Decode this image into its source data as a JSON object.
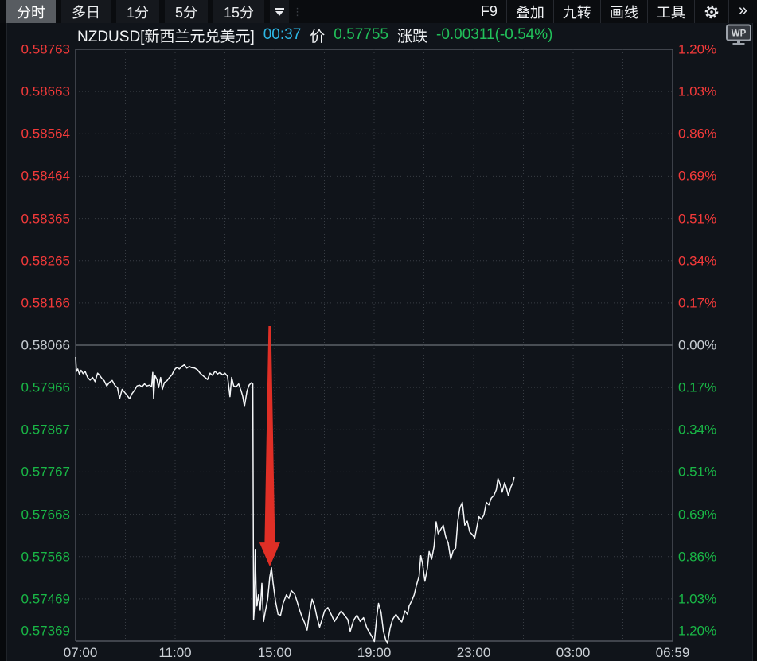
{
  "toolbar": {
    "tabs": [
      {
        "label": "分时",
        "active": true
      },
      {
        "label": "多日",
        "active": false
      },
      {
        "label": "1分",
        "active": false
      },
      {
        "label": "5分",
        "active": false
      },
      {
        "label": "15分",
        "active": false
      }
    ],
    "right_buttons": [
      {
        "label": "F9"
      },
      {
        "label": "叠加"
      },
      {
        "label": "九转"
      },
      {
        "label": "画线"
      },
      {
        "label": "工具"
      }
    ],
    "gear_icon": "gear-icon",
    "more_label": "»"
  },
  "header": {
    "symbol": "NZDUSD[新西兰元兑美元]",
    "time": "00:37",
    "price_label": "价",
    "price": "0.57755",
    "change_label": "涨跌",
    "change": "-0.00311(-0.54%)"
  },
  "watermark": {
    "label": "WP"
  },
  "axes": {
    "left_labels": [
      "0.58763",
      "0.58663",
      "0.58564",
      "0.58464",
      "0.58365",
      "0.58265",
      "0.58166",
      "0.58066",
      "0.57966",
      "0.57867",
      "0.57767",
      "0.57668",
      "0.57568",
      "0.57469",
      "0.57369"
    ],
    "right_labels": [
      "1.20%",
      "1.03%",
      "0.86%",
      "0.69%",
      "0.51%",
      "0.34%",
      "0.17%",
      "0.00%",
      "0.17%",
      "0.34%",
      "0.51%",
      "0.69%",
      "0.86%",
      "1.03%",
      "1.20%"
    ],
    "x_labels": [
      "07:00",
      "11:00",
      "15:00",
      "19:00",
      "23:00",
      "03:00",
      "06:59"
    ]
  },
  "colors": {
    "up_red": "#f43a3a",
    "down_green": "#19b746",
    "neutral": "#c7cdd3",
    "cyan": "#2eb8e6",
    "price_line": "#f4f6f8",
    "arrow_red": "#e93126",
    "grid_dotted": "#383d44",
    "grid_solid": "#50545c",
    "zero_line": "#5c6168"
  },
  "chart_data": {
    "type": "line",
    "title": "NZDUSD 分时 (intraday)",
    "xlabel": "time",
    "ylabel": "price",
    "x_unit": "minutes since 07:00",
    "x_range": [
      0,
      1439
    ],
    "y_range": [
      0.57369,
      0.58763
    ],
    "baseline_price": 0.58066,
    "grid": "dotted",
    "last_time": "00:37",
    "last_price": 0.57755,
    "change": -0.00311,
    "change_pct": -0.54,
    "annotation_arrow": {
      "time_min": 468,
      "from_price": 0.58111,
      "to_price": 0.57545
    },
    "points": [
      [
        0,
        0.58038
      ],
      [
        2,
        0.58004
      ],
      [
        5,
        0.5801
      ],
      [
        9,
        0.57998
      ],
      [
        13,
        0.58007
      ],
      [
        18,
        0.57999
      ],
      [
        23,
        0.58004
      ],
      [
        29,
        0.5799
      ],
      [
        35,
        0.57984
      ],
      [
        41,
        0.5799
      ],
      [
        47,
        0.5798
      ],
      [
        53,
        0.58
      ],
      [
        58,
        0.57995
      ],
      [
        63,
        0.57988
      ],
      [
        69,
        0.57982
      ],
      [
        75,
        0.5797
      ],
      [
        81,
        0.57978
      ],
      [
        88,
        0.57983
      ],
      [
        95,
        0.57971
      ],
      [
        101,
        0.57966
      ],
      [
        106,
        0.5794
      ],
      [
        112,
        0.57962
      ],
      [
        118,
        0.57955
      ],
      [
        124,
        0.57948
      ],
      [
        130,
        0.5794
      ],
      [
        136,
        0.57952
      ],
      [
        142,
        0.5796
      ],
      [
        148,
        0.5797
      ],
      [
        154,
        0.57972
      ],
      [
        160,
        0.57968
      ],
      [
        166,
        0.57975
      ],
      [
        172,
        0.5797
      ],
      [
        178,
        0.57972
      ],
      [
        183,
        0.57968
      ],
      [
        186,
        0.58002
      ],
      [
        188,
        0.5794
      ],
      [
        191,
        0.57995
      ],
      [
        196,
        0.57985
      ],
      [
        200,
        0.57966
      ],
      [
        205,
        0.5799
      ],
      [
        209,
        0.57962
      ],
      [
        214,
        0.57978
      ],
      [
        220,
        0.57982
      ],
      [
        226,
        0.5799
      ],
      [
        232,
        0.57996
      ],
      [
        238,
        0.58008
      ],
      [
        244,
        0.58014
      ],
      [
        250,
        0.5801
      ],
      [
        256,
        0.58016
      ],
      [
        262,
        0.5802
      ],
      [
        268,
        0.58012
      ],
      [
        274,
        0.58016
      ],
      [
        280,
        0.58013
      ],
      [
        287,
        0.58012
      ],
      [
        294,
        0.58008
      ],
      [
        300,
        0.58
      ],
      [
        306,
        0.57995
      ],
      [
        312,
        0.5799
      ],
      [
        318,
        0.57985
      ],
      [
        324,
        0.58
      ],
      [
        330,
        0.57995
      ],
      [
        336,
        0.58005
      ],
      [
        342,
        0.57998
      ],
      [
        348,
        0.58002
      ],
      [
        354,
        0.57996
      ],
      [
        360,
        0.58
      ],
      [
        366,
        0.57993
      ],
      [
        372,
        0.57945
      ],
      [
        376,
        0.5799
      ],
      [
        381,
        0.5797
      ],
      [
        387,
        0.57968
      ],
      [
        393,
        0.57975
      ],
      [
        399,
        0.57958
      ],
      [
        403,
        0.57945
      ],
      [
        407,
        0.57922
      ],
      [
        413,
        0.57958
      ],
      [
        418,
        0.57972
      ],
      [
        424,
        0.57978
      ],
      [
        427,
        0.57975
      ],
      [
        429,
        0.5742
      ],
      [
        431,
        0.57448
      ],
      [
        433,
        0.57585
      ],
      [
        435,
        0.57495
      ],
      [
        437,
        0.57452
      ],
      [
        441,
        0.57478
      ],
      [
        445,
        0.57442
      ],
      [
        449,
        0.57505
      ],
      [
        453,
        0.57415
      ],
      [
        457,
        0.57438
      ],
      [
        463,
        0.57468
      ],
      [
        468,
        0.5752
      ],
      [
        472,
        0.57542
      ],
      [
        476,
        0.57505
      ],
      [
        482,
        0.57462
      ],
      [
        488,
        0.57432
      ],
      [
        494,
        0.5743
      ],
      [
        500,
        0.57458
      ],
      [
        508,
        0.57478
      ],
      [
        514,
        0.5747
      ],
      [
        520,
        0.57488
      ],
      [
        528,
        0.5748
      ],
      [
        534,
        0.57462
      ],
      [
        540,
        0.57442
      ],
      [
        546,
        0.57425
      ],
      [
        552,
        0.57412
      ],
      [
        558,
        0.57395
      ],
      [
        564,
        0.57438
      ],
      [
        570,
        0.57468
      ],
      [
        576,
        0.57452
      ],
      [
        582,
        0.57424
      ],
      [
        588,
        0.57402
      ],
      [
        594,
        0.5742
      ],
      [
        600,
        0.5744
      ],
      [
        608,
        0.57448
      ],
      [
        616,
        0.57432
      ],
      [
        624,
        0.57415
      ],
      [
        632,
        0.57428
      ],
      [
        640,
        0.5744
      ],
      [
        648,
        0.5743
      ],
      [
        656,
        0.5742
      ],
      [
        662,
        0.57392
      ],
      [
        670,
        0.57418
      ],
      [
        678,
        0.5743
      ],
      [
        686,
        0.57415
      ],
      [
        694,
        0.57424
      ],
      [
        702,
        0.574
      ],
      [
        708,
        0.5739
      ],
      [
        714,
        0.5738
      ],
      [
        720,
        0.57368
      ],
      [
        726,
        0.57428
      ],
      [
        730,
        0.57458
      ],
      [
        736,
        0.57438
      ],
      [
        742,
        0.57392
      ],
      [
        748,
        0.5737
      ],
      [
        752,
        0.57365
      ],
      [
        758,
        0.574
      ],
      [
        764,
        0.5742
      ],
      [
        772,
        0.57432
      ],
      [
        780,
        0.5742
      ],
      [
        786,
        0.57414
      ],
      [
        794,
        0.5744
      ],
      [
        800,
        0.57432
      ],
      [
        804,
        0.57452
      ],
      [
        810,
        0.57464
      ],
      [
        816,
        0.57478
      ],
      [
        822,
        0.57502
      ],
      [
        828,
        0.57522
      ],
      [
        832,
        0.5757
      ],
      [
        836,
        0.57553
      ],
      [
        842,
        0.5751
      ],
      [
        848,
        0.57542
      ],
      [
        852,
        0.5758
      ],
      [
        858,
        0.57562
      ],
      [
        864,
        0.57592
      ],
      [
        869,
        0.5765
      ],
      [
        874,
        0.57622
      ],
      [
        880,
        0.57632
      ],
      [
        886,
        0.57642
      ],
      [
        892,
        0.57615
      ],
      [
        898,
        0.576
      ],
      [
        904,
        0.57562
      ],
      [
        910,
        0.57582
      ],
      [
        916,
        0.57588
      ],
      [
        921,
        0.5765
      ],
      [
        926,
        0.57682
      ],
      [
        932,
        0.57696
      ],
      [
        938,
        0.57642
      ],
      [
        944,
        0.57652
      ],
      [
        950,
        0.57626
      ],
      [
        956,
        0.5762
      ],
      [
        962,
        0.57612
      ],
      [
        968,
        0.57642
      ],
      [
        972,
        0.57662
      ],
      [
        978,
        0.57656
      ],
      [
        984,
        0.57666
      ],
      [
        990,
        0.57696
      ],
      [
        996,
        0.5769
      ],
      [
        1002,
        0.57706
      ],
      [
        1008,
        0.57712
      ],
      [
        1014,
        0.57726
      ],
      [
        1018,
        0.57752
      ],
      [
        1024,
        0.57736
      ],
      [
        1028,
        0.5772
      ],
      [
        1034,
        0.57742
      ],
      [
        1038,
        0.57731
      ],
      [
        1043,
        0.57712
      ],
      [
        1049,
        0.57732
      ],
      [
        1054,
        0.57742
      ],
      [
        1057,
        0.57755
      ]
    ]
  }
}
